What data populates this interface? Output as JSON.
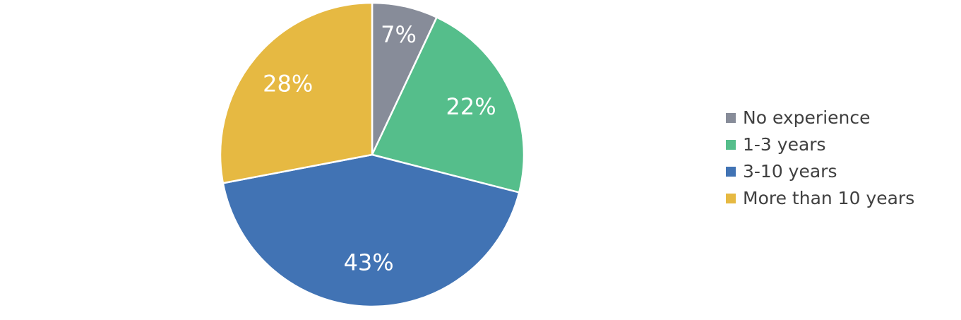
{
  "chart_data": {
    "type": "pie",
    "categories": [
      "No experience",
      "1-3 years",
      "3-10 years",
      "More than 10 years"
    ],
    "values": [
      7,
      22,
      43,
      28
    ],
    "value_labels": [
      "7%",
      "22%",
      "43%",
      "28%"
    ],
    "colors": [
      "#878c99",
      "#55be8b",
      "#4173b4",
      "#e6b942"
    ],
    "legend": "right"
  }
}
